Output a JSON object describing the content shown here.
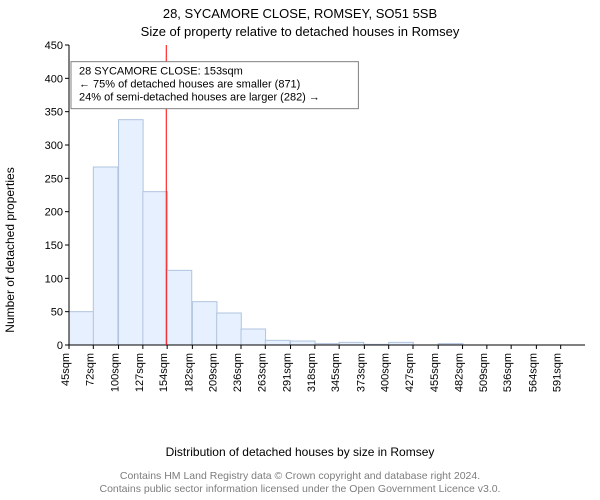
{
  "title_main": "28, SYCAMORE CLOSE, ROMSEY, SO51 5SB",
  "title_sub": "Size of property relative to detached houses in Romsey",
  "ylabel": "Number of detached properties",
  "xlabel": "Distribution of detached houses by size in Romsey",
  "footer_line1": "Contains HM Land Registry data © Crown copyright and database right 2024.",
  "footer_line2": "Contains public sector information licensed under the Open Government Licence v3.0.",
  "chart": {
    "type": "histogram",
    "background_color": "#ffffff",
    "axis_color": "#000000",
    "tick_font_size": 11,
    "label_font_size": 12,
    "title_font_size": 13,
    "footer_color": "#7d7d7d",
    "footer_font_size": 10.5,
    "xlim": [
      45,
      618
    ],
    "ylim": [
      0,
      450
    ],
    "ytick_step": 50,
    "yticks": [
      0,
      50,
      100,
      150,
      200,
      250,
      300,
      350,
      400,
      450
    ],
    "xticks": [
      45,
      72,
      100,
      127,
      154,
      182,
      209,
      236,
      263,
      291,
      318,
      345,
      373,
      400,
      427,
      455,
      482,
      509,
      536,
      564,
      591
    ],
    "xtick_suffix": "sqm",
    "bin_width": 27.3,
    "bar_fill": "#e6f0ff",
    "bar_stroke": "#b0c4de",
    "bar_stroke_width": 1,
    "bins": [
      {
        "start": 45,
        "count": 50
      },
      {
        "start": 72,
        "count": 267
      },
      {
        "start": 100,
        "count": 338
      },
      {
        "start": 127,
        "count": 230
      },
      {
        "start": 154,
        "count": 112
      },
      {
        "start": 182,
        "count": 65
      },
      {
        "start": 209,
        "count": 48
      },
      {
        "start": 236,
        "count": 24
      },
      {
        "start": 263,
        "count": 7
      },
      {
        "start": 291,
        "count": 6
      },
      {
        "start": 318,
        "count": 2
      },
      {
        "start": 345,
        "count": 4
      },
      {
        "start": 373,
        "count": 1
      },
      {
        "start": 400,
        "count": 4
      },
      {
        "start": 427,
        "count": 0
      },
      {
        "start": 455,
        "count": 2
      },
      {
        "start": 482,
        "count": 0
      },
      {
        "start": 509,
        "count": 0
      },
      {
        "start": 536,
        "count": 0
      },
      {
        "start": 564,
        "count": 0
      },
      {
        "start": 591,
        "count": 0
      }
    ],
    "reference": {
      "value_sqm": 153,
      "line_color": "#ff0000",
      "line_width": 1
    },
    "annotation": {
      "lines": [
        "28 SYCAMORE CLOSE: 153sqm",
        "← 75% of detached houses are smaller (871)",
        "24% of semi-detached houses are larger (282) →"
      ],
      "box_stroke": "#808080",
      "box_fill": "#ffffff",
      "text_font_size": 11,
      "position_y_value": 425
    }
  }
}
